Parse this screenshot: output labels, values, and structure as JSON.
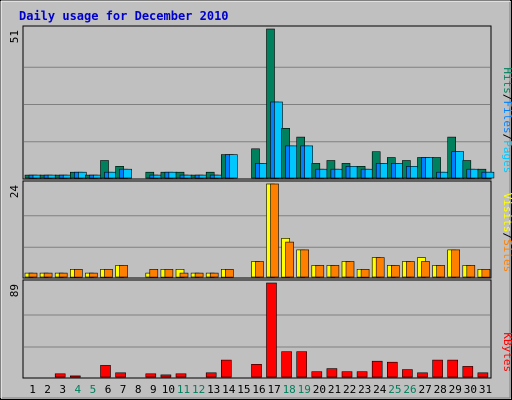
{
  "title": "Daily usage for December 2010",
  "colors": {
    "outer_bg": "#c0c0c0",
    "plot_bg": "#c0c0c0",
    "grid": "#808080",
    "title": "#0000cc",
    "hits": "#00805c",
    "files": "#0080ff",
    "pages": "#00c8ff",
    "visits": "#ffff00",
    "sites": "#ff8000",
    "kbytes": "#ff0000",
    "day_label": "#000000",
    "weekend_label": "#00805c"
  },
  "chart_data": [
    {
      "type": "bar",
      "panel": "hits-files-pages",
      "max_label": "51",
      "ylim": [
        0,
        51
      ],
      "grid": true,
      "legend": [
        {
          "text": "Pages",
          "color_key": "pages"
        },
        {
          "text": "/",
          "color_key": "sep"
        },
        {
          "text": "Files",
          "color_key": "files"
        },
        {
          "text": "/",
          "color_key": "sep"
        },
        {
          "text": "Hits",
          "color_key": "hits"
        }
      ],
      "categories": [
        "1",
        "2",
        "3",
        "4",
        "5",
        "6",
        "7",
        "8",
        "9",
        "10",
        "11",
        "12",
        "13",
        "14",
        "15",
        "16",
        "17",
        "18",
        "19",
        "20",
        "21",
        "22",
        "23",
        "24",
        "25",
        "26",
        "27",
        "28",
        "29",
        "30",
        "31"
      ],
      "series": [
        {
          "name": "Hits",
          "color_key": "hits",
          "values": [
            1,
            1,
            1,
            2,
            1,
            6,
            4,
            0,
            2,
            2,
            2,
            1,
            2,
            8,
            0,
            10,
            51,
            17,
            14,
            5,
            6,
            5,
            4,
            9,
            7,
            6,
            7,
            7,
            14,
            6,
            3
          ]
        },
        {
          "name": "Files",
          "color_key": "files",
          "values": [
            1,
            1,
            1,
            2,
            1,
            2,
            3,
            0,
            1,
            2,
            1,
            1,
            1,
            8,
            0,
            5,
            26,
            11,
            11,
            3,
            3,
            4,
            3,
            5,
            5,
            4,
            7,
            2,
            9,
            3,
            2
          ]
        },
        {
          "name": "Pages",
          "color_key": "pages",
          "values": [
            1,
            1,
            1,
            2,
            1,
            2,
            3,
            0,
            1,
            2,
            1,
            1,
            1,
            8,
            0,
            5,
            26,
            11,
            11,
            3,
            3,
            4,
            3,
            5,
            5,
            4,
            7,
            2,
            9,
            3,
            2
          ]
        }
      ]
    },
    {
      "type": "bar",
      "panel": "visits-sites",
      "max_label": "24",
      "ylim": [
        0,
        24
      ],
      "grid": true,
      "legend": [
        {
          "text": "Sites",
          "color_key": "sites"
        },
        {
          "text": "/",
          "color_key": "sep"
        },
        {
          "text": "Visits",
          "color_key": "visits"
        }
      ],
      "categories": [
        "1",
        "2",
        "3",
        "4",
        "5",
        "6",
        "7",
        "8",
        "9",
        "10",
        "11",
        "12",
        "13",
        "14",
        "15",
        "16",
        "17",
        "18",
        "19",
        "20",
        "21",
        "22",
        "23",
        "24",
        "25",
        "26",
        "27",
        "28",
        "29",
        "30",
        "31"
      ],
      "series": [
        {
          "name": "Visits",
          "color_key": "visits",
          "values": [
            1,
            1,
            1,
            2,
            1,
            2,
            3,
            0,
            1,
            2,
            2,
            1,
            1,
            2,
            0,
            4,
            24,
            10,
            7,
            3,
            3,
            4,
            2,
            5,
            3,
            4,
            5,
            3,
            7,
            3,
            2
          ]
        },
        {
          "name": "Sites",
          "color_key": "sites",
          "values": [
            1,
            1,
            1,
            2,
            1,
            2,
            3,
            0,
            2,
            2,
            1,
            1,
            1,
            2,
            0,
            4,
            24,
            9,
            7,
            3,
            3,
            4,
            2,
            5,
            3,
            4,
            4,
            3,
            7,
            3,
            2
          ]
        }
      ]
    },
    {
      "type": "bar",
      "panel": "kbytes",
      "max_label": "89",
      "ylim": [
        0,
        89
      ],
      "grid": true,
      "legend": [
        {
          "text": "KBytes",
          "color_key": "kbytes"
        }
      ],
      "categories": [
        "1",
        "2",
        "3",
        "4",
        "5",
        "6",
        "7",
        "8",
        "9",
        "10",
        "11",
        "12",
        "13",
        "14",
        "15",
        "16",
        "17",
        "18",
        "19",
        "20",
        "21",
        "22",
        "23",
        "24",
        "25",
        "26",
        "27",
        "28",
        "29",
        "30",
        "31"
      ],
      "series": [
        {
          "name": "KBytes",
          "color_key": "kbytes",
          "values": [
            0,
            0,
            3,
            1,
            0,
            11,
            4,
            0,
            3,
            2,
            3,
            0,
            4,
            16,
            0,
            12,
            89,
            24,
            24,
            5,
            8,
            5,
            5,
            15,
            14,
            7,
            4,
            16,
            16,
            10,
            4
          ]
        }
      ]
    }
  ],
  "weekend_days": [
    "4",
    "5",
    "11",
    "12",
    "18",
    "19",
    "25",
    "26"
  ]
}
